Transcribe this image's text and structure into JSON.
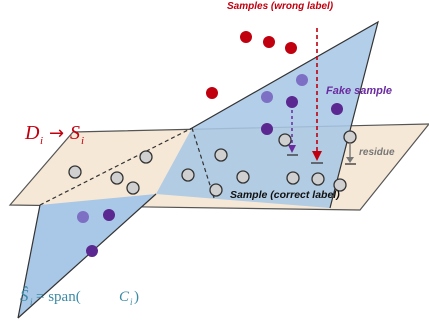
{
  "labels": {
    "samples_wrong": "Samples (wrong label)",
    "fake_sample": "Fake sample",
    "residue": "residue",
    "sample_correct": "Sample (correct label)",
    "mapping_left": "D",
    "mapping_left_sub": "i",
    "mapping_arrow": "→",
    "mapping_right": "S",
    "mapping_right_sub": "i",
    "subspace_hat": "Ŝ",
    "subspace_sub": "i",
    "subspace_eq": " = span(",
    "subspace_C": "C",
    "subspace_C_sub": "i",
    "subspace_close": ")"
  },
  "colors": {
    "red_dot": "#c0000f",
    "purple_dot": "#6a2aa0",
    "blue_plane": "#a9c7e6",
    "tan_plane": "#f6e8d6",
    "gray_dot": "#d0d0d0",
    "label_red": "#c0000f",
    "label_purple": "#6a2aa0",
    "label_gray": "#777777",
    "label_teal": "#3a8aa5"
  }
}
